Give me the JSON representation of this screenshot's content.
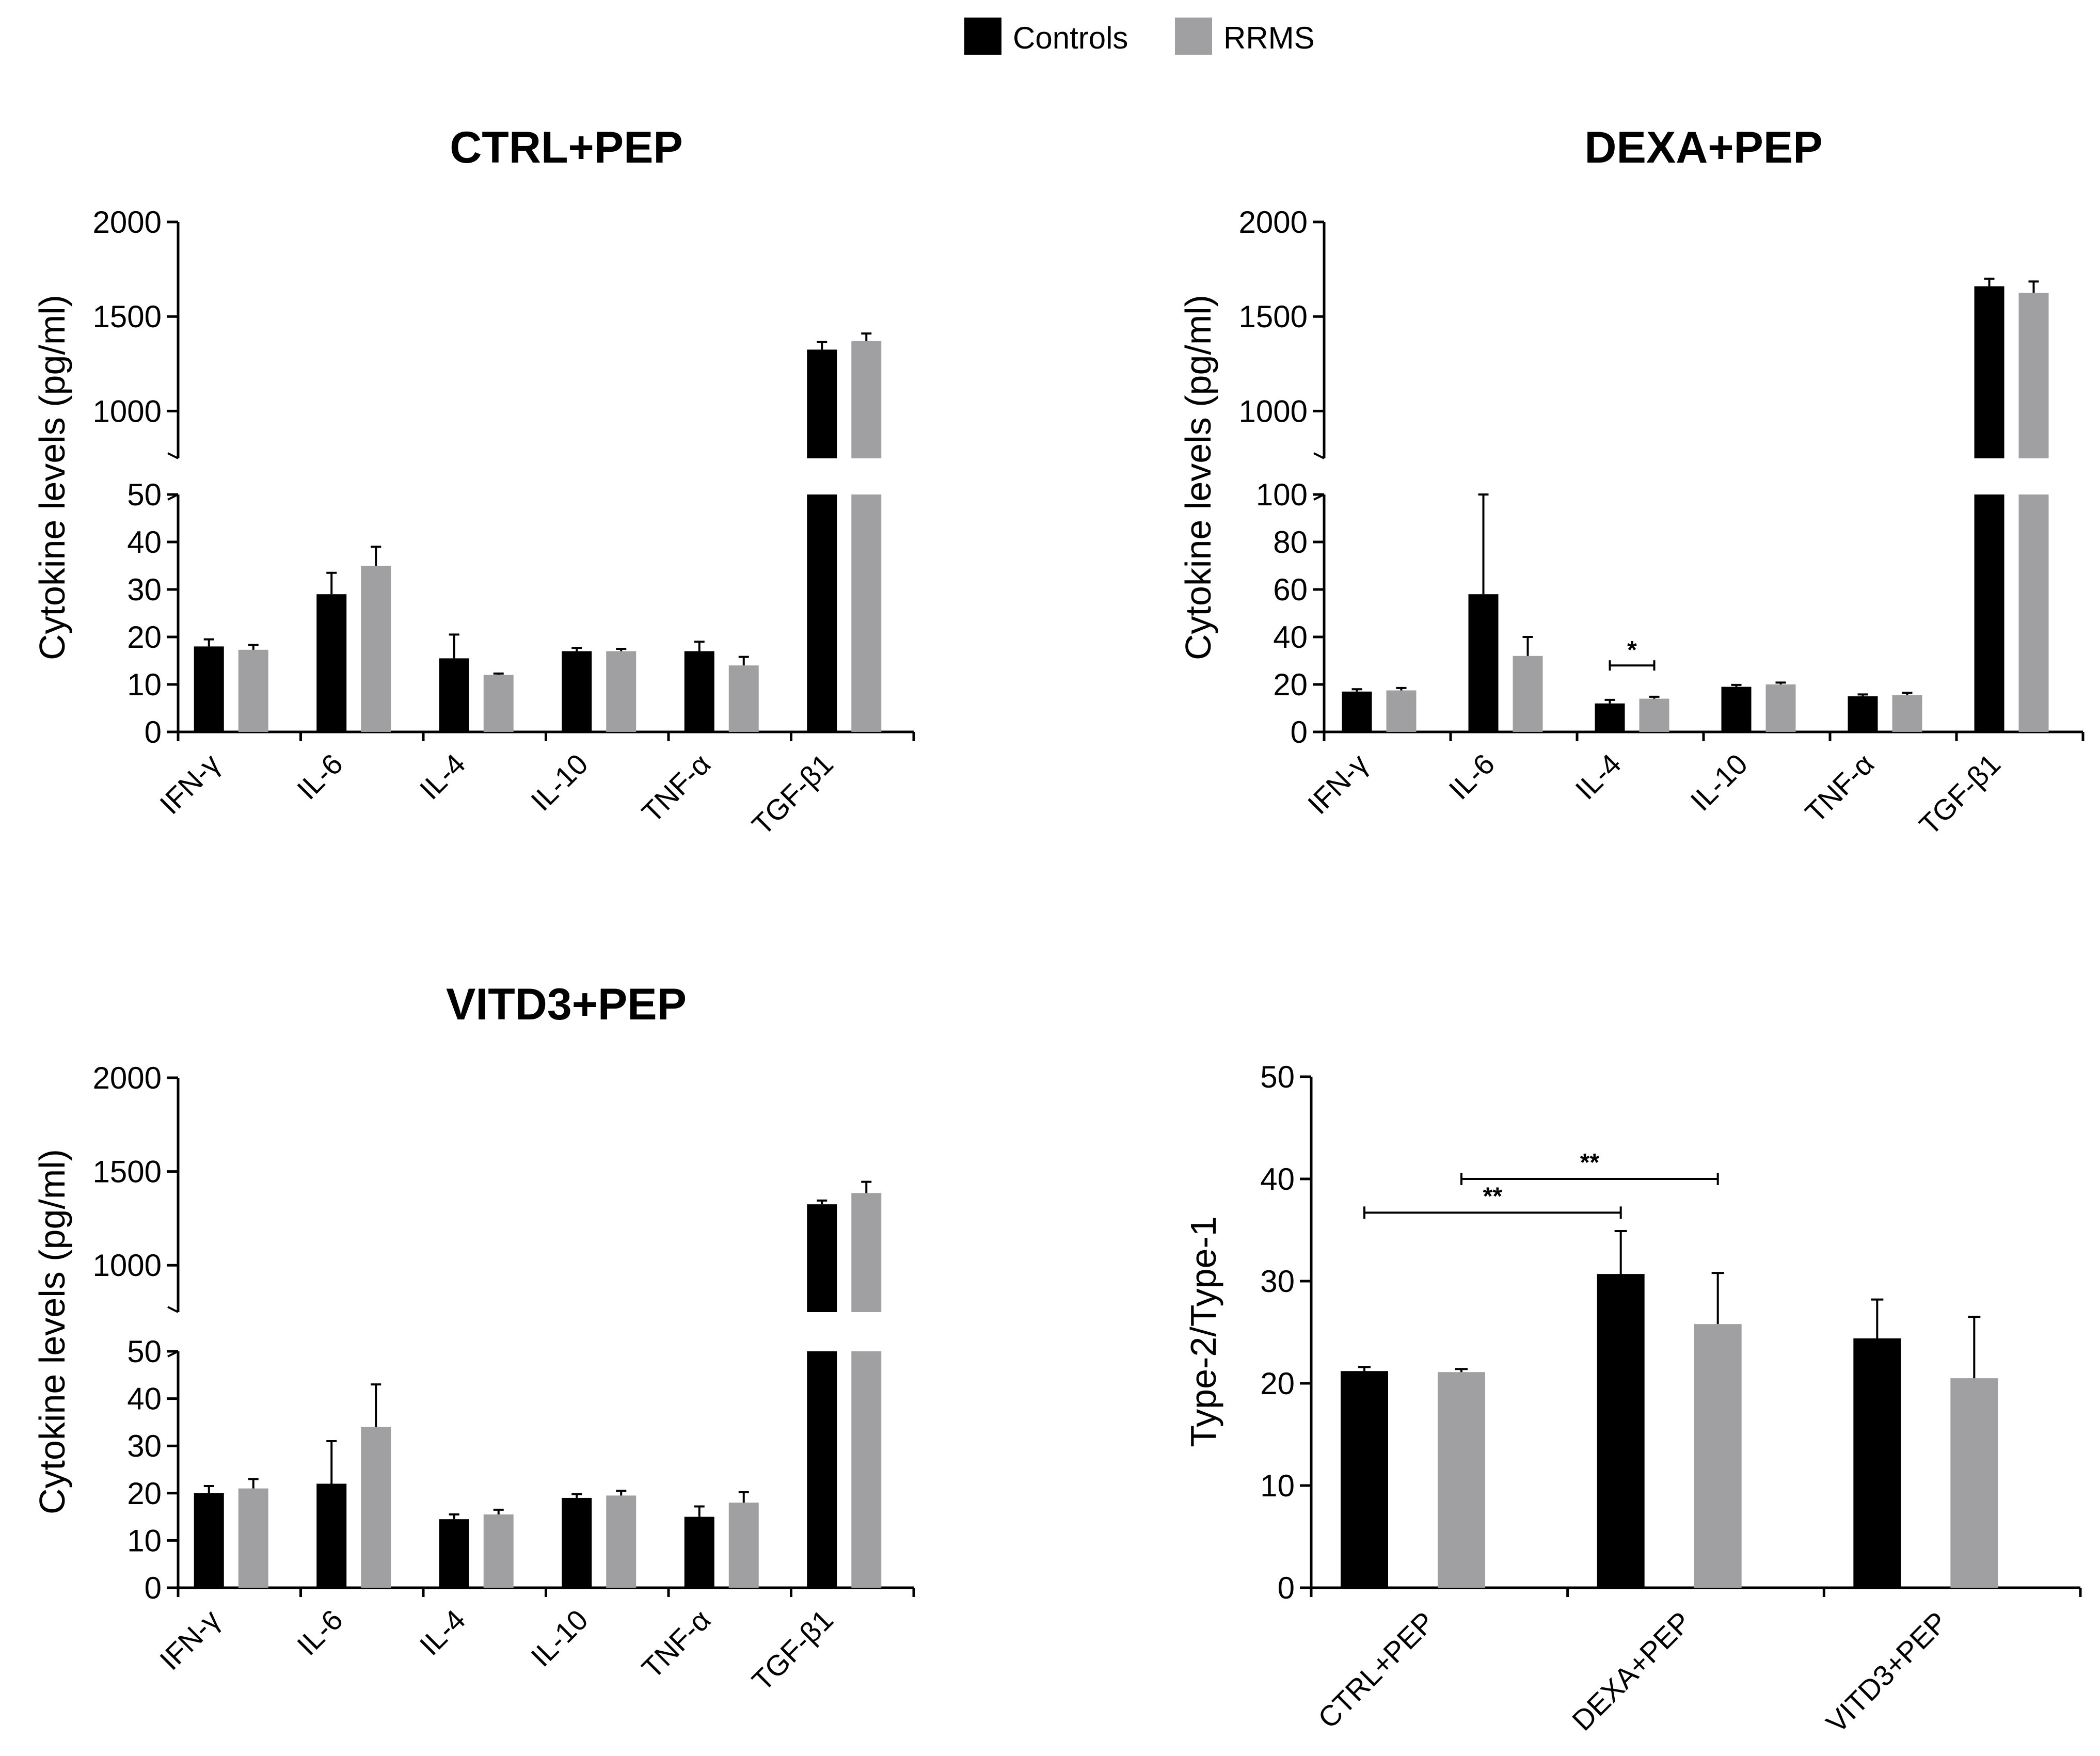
{
  "legend": [
    {
      "label": "Controls",
      "color": "#000000"
    },
    {
      "label": "RRMS",
      "color": "#a0a0a3"
    }
  ],
  "chart_data": [
    {
      "type": "bar",
      "title": "CTRL+PEP",
      "ylabel": "Cytokine levels (pg/ml)",
      "categories": [
        "IFN-γ",
        "IL-6",
        "IL-4",
        "IL-10",
        "TNF-α",
        "TGF-β1"
      ],
      "broken_axis": true,
      "lower_ylim": [
        0,
        50
      ],
      "lower_ticks": [
        "0",
        "10",
        "20",
        "30",
        "40",
        "50"
      ],
      "upper_ylim": [
        750,
        2000
      ],
      "upper_ticks": [
        "1000",
        "1500",
        "2000"
      ],
      "series": [
        {
          "name": "Controls",
          "values": [
            18,
            29,
            15.5,
            17,
            17,
            1325
          ],
          "errors": [
            1.5,
            4.5,
            5,
            0.7,
            2,
            40
          ]
        },
        {
          "name": "RRMS",
          "values": [
            17.3,
            35,
            12,
            17,
            14,
            1370
          ],
          "errors": [
            1,
            4,
            0.3,
            0.5,
            1.8,
            40
          ]
        }
      ],
      "annotations": []
    },
    {
      "type": "bar",
      "title": "DEXA+PEP",
      "ylabel": "Cytokine levels (pg/ml)",
      "categories": [
        "IFN-γ",
        "IL-6",
        "IL-4",
        "IL-10",
        "TNF-α",
        "TGF-β1"
      ],
      "broken_axis": true,
      "lower_ylim": [
        0,
        100
      ],
      "lower_ticks": [
        "0",
        "20",
        "40",
        "60",
        "80",
        "100"
      ],
      "upper_ylim": [
        750,
        2000
      ],
      "upper_ticks": [
        "1000",
        "1500",
        "2000"
      ],
      "series": [
        {
          "name": "Controls",
          "values": [
            17,
            58,
            12,
            19,
            15,
            1660
          ],
          "errors": [
            1,
            42,
            1.5,
            0.8,
            0.8,
            40
          ]
        },
        {
          "name": "RRMS",
          "values": [
            17.5,
            32,
            14,
            20,
            15.5,
            1625
          ],
          "errors": [
            1,
            8,
            0.8,
            0.8,
            1,
            60
          ]
        }
      ],
      "annotations": [
        {
          "text": "*",
          "from": "IL-4 Controls",
          "to": "IL-4 RRMS",
          "y": 28
        }
      ]
    },
    {
      "type": "bar",
      "title": "VITD3+PEP",
      "ylabel": "Cytokine levels (pg/ml)",
      "categories": [
        "IFN-γ",
        "IL-6",
        "IL-4",
        "IL-10",
        "TNF-α",
        "TGF-β1"
      ],
      "broken_axis": true,
      "lower_ylim": [
        0,
        50
      ],
      "lower_ticks": [
        "0",
        "10",
        "20",
        "30",
        "40",
        "50"
      ],
      "upper_ylim": [
        750,
        2000
      ],
      "upper_ticks": [
        "1000",
        "1500",
        "2000"
      ],
      "series": [
        {
          "name": "Controls",
          "values": [
            20,
            22,
            14.5,
            19,
            15,
            1325
          ],
          "errors": [
            1.5,
            9,
            1,
            0.8,
            2.2,
            20
          ]
        },
        {
          "name": "RRMS",
          "values": [
            21,
            34,
            15.5,
            19.5,
            18,
            1385
          ],
          "errors": [
            2,
            9,
            1,
            1,
            2.2,
            60
          ]
        }
      ],
      "annotations": []
    },
    {
      "type": "bar",
      "title": "",
      "ylabel": "Type-2/Type-1",
      "categories": [
        "CTRL+PEP",
        "DEXA+PEP",
        "VITD3+PEP"
      ],
      "broken_axis": false,
      "ylim": [
        0,
        50
      ],
      "ticks": [
        "0",
        "10",
        "20",
        "30",
        "40",
        "50"
      ],
      "series": [
        {
          "name": "Controls",
          "values": [
            21.2,
            30.7,
            24.4
          ],
          "errors": [
            0.4,
            4.2,
            3.8
          ]
        },
        {
          "name": "RRMS",
          "values": [
            21.1,
            25.8,
            20.5
          ],
          "errors": [
            0.3,
            5,
            6
          ]
        }
      ],
      "annotations": [
        {
          "text": "**",
          "from": "CTRL+PEP Controls",
          "to": "DEXA+PEP Controls",
          "y": 36.7
        },
        {
          "text": "**",
          "from": "CTRL+PEP RRMS",
          "to": "DEXA+PEP RRMS",
          "y": 40
        }
      ]
    }
  ]
}
